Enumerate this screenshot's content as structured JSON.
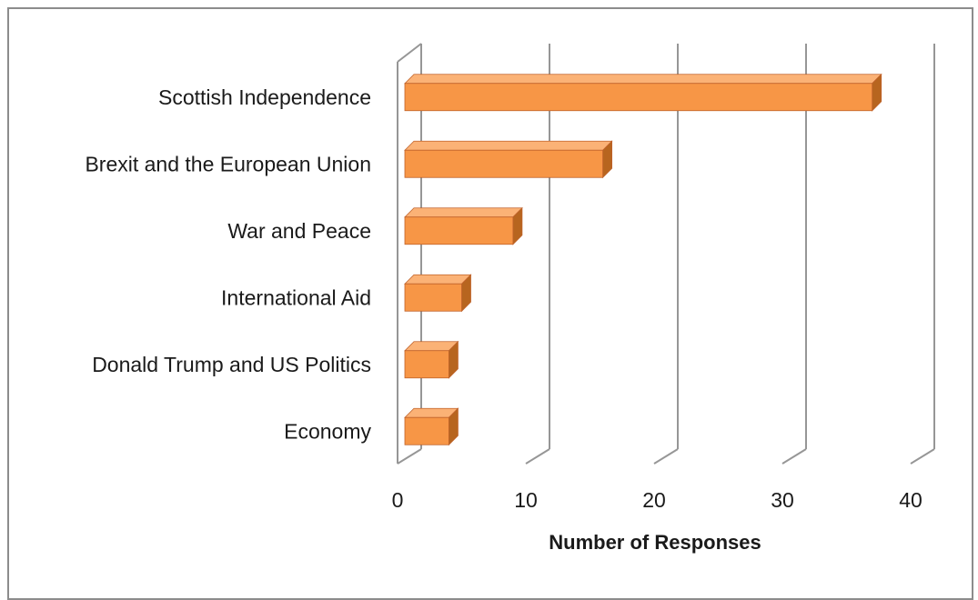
{
  "chart_data": {
    "type": "bar",
    "orientation": "horizontal",
    "style": "3d",
    "categories": [
      "Scottish Independence",
      "Brexit and the European Union",
      "War and Peace",
      "International Aid",
      "Donald Trump and US Politics",
      "Economy"
    ],
    "values": [
      37,
      16,
      9,
      5,
      4,
      4
    ],
    "title": "",
    "xlabel": "Number of Responses",
    "ylabel": "",
    "xlim": [
      0,
      40
    ],
    "xticks": [
      "0",
      "10",
      "20",
      "30",
      "40"
    ],
    "grid": "vertical",
    "legend": "none",
    "colors": {
      "bar_front": "#f79646",
      "bar_top": "#fbb276",
      "bar_side": "#b7651f",
      "bar_outline": "#c0622a",
      "grid": "#969696",
      "frame": "#8c8c8c"
    }
  }
}
